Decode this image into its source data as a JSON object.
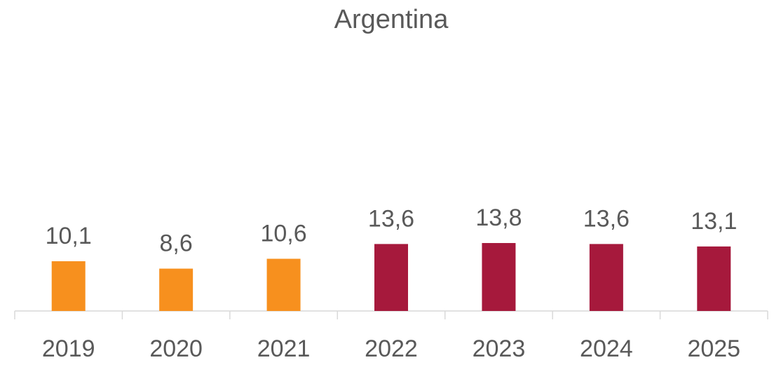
{
  "chart_data": {
    "type": "bar",
    "title": "Argentina",
    "categories": [
      "2019",
      "2020",
      "2021",
      "2022",
      "2023",
      "2024",
      "2025"
    ],
    "values": [
      10.1,
      8.6,
      10.6,
      13.6,
      13.8,
      13.6,
      13.1
    ],
    "value_labels": [
      "10,1",
      "8,6",
      "10,6",
      "13,6",
      "13,8",
      "13,6",
      "13,1"
    ],
    "colors": [
      "#f7901e",
      "#f7901e",
      "#f7901e",
      "#a6193c",
      "#a6193c",
      "#a6193c",
      "#a6193c"
    ],
    "ylim": [
      0,
      50
    ]
  }
}
